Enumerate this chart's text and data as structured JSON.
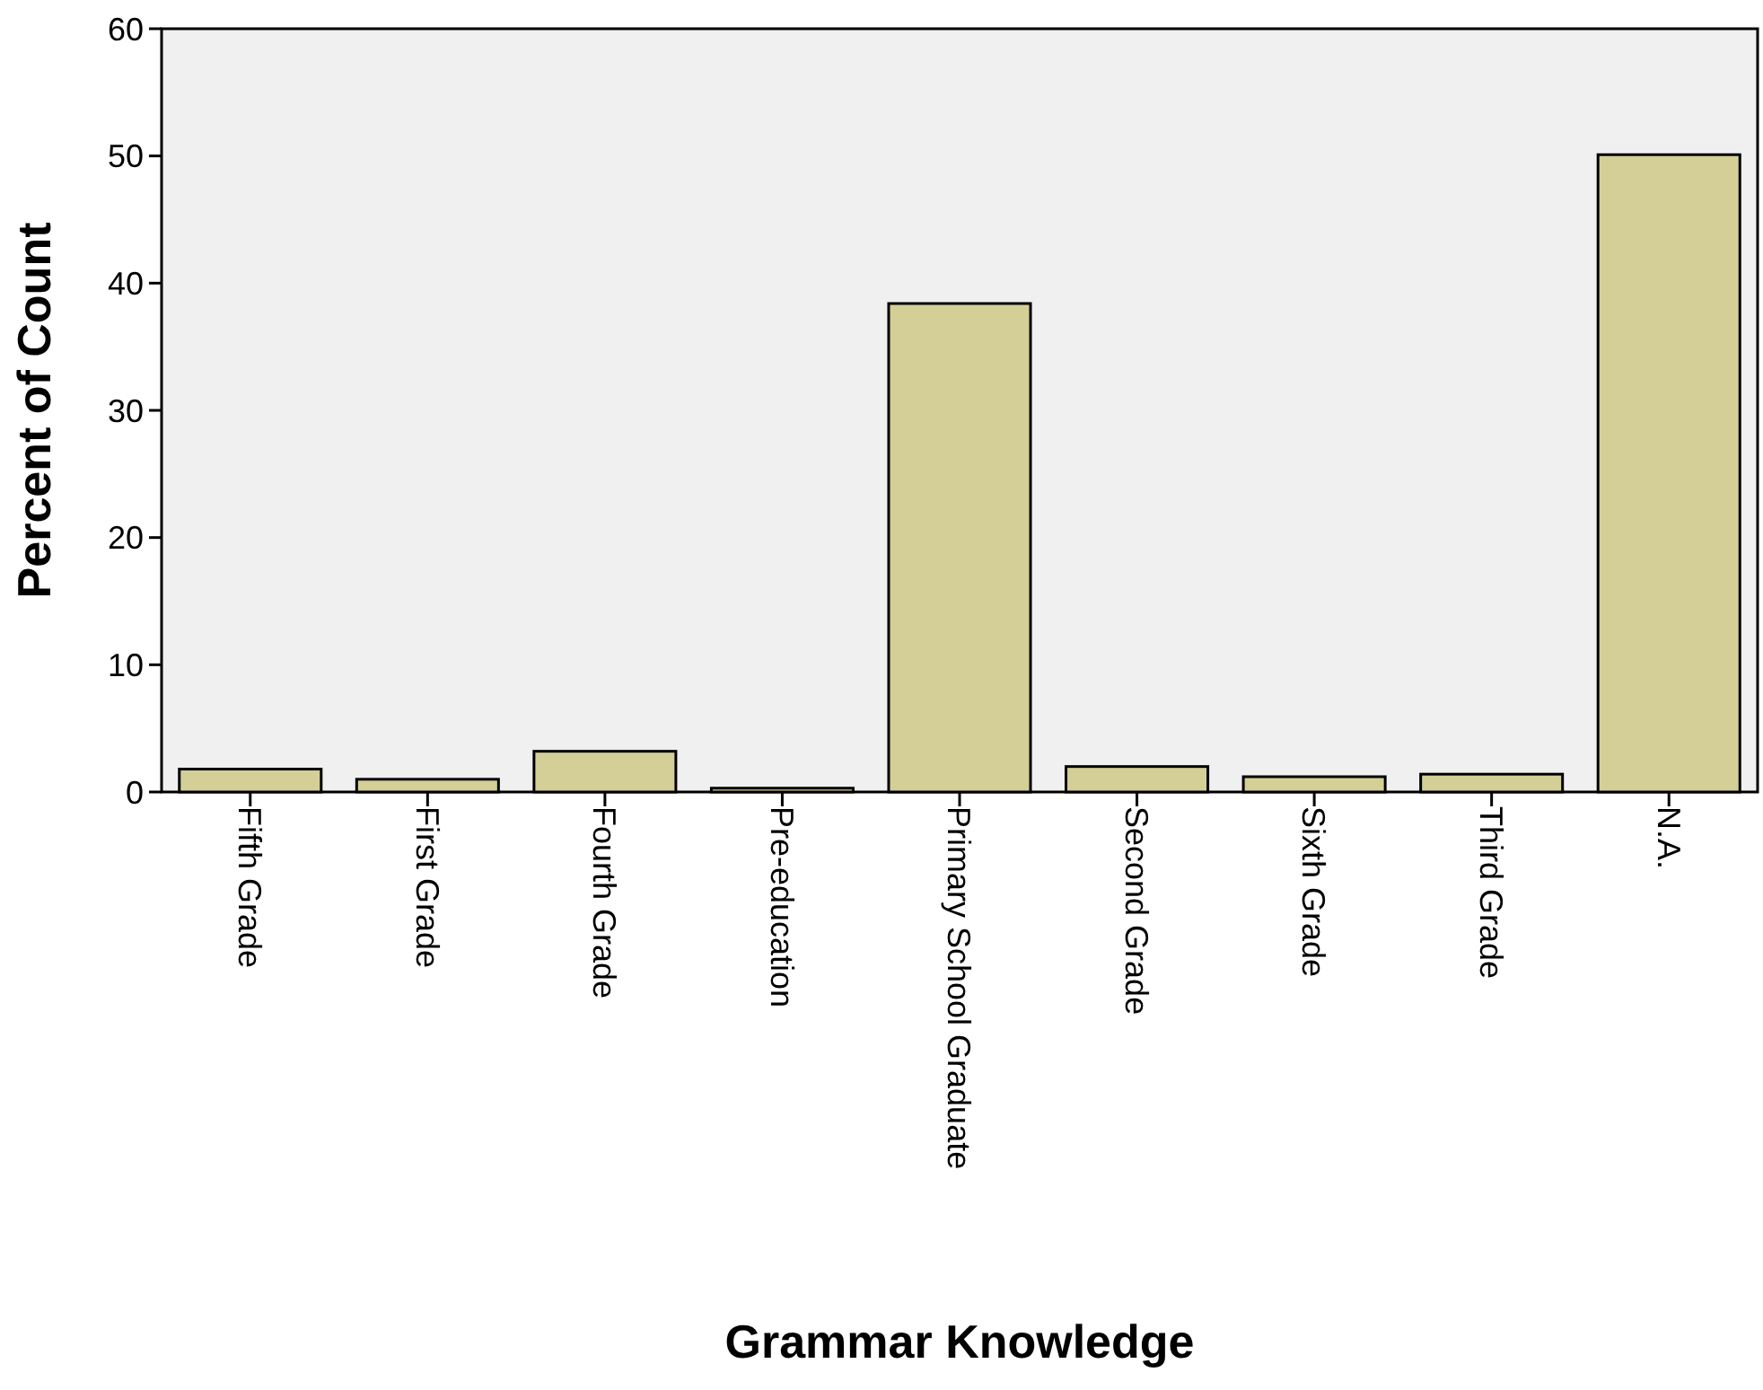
{
  "chart_data": {
    "type": "bar",
    "xlabel": "Grammar Knowledge",
    "ylabel": "Percent of Count",
    "categories": [
      "Fifth Grade",
      "First Grade",
      "Fourth Grade",
      "Pre-education",
      "Primary School Graduate",
      "Second Grade",
      "Sixth Grade",
      "Third Grade",
      "N.A."
    ],
    "values": [
      1.8,
      1.0,
      3.2,
      0.3,
      38.4,
      2.0,
      1.2,
      1.4,
      50.1
    ],
    "color": "#d3cf97",
    "ylim": [
      0,
      60
    ],
    "yticks": [
      0,
      10,
      20,
      30,
      40,
      50,
      60
    ],
    "grid": false
  }
}
